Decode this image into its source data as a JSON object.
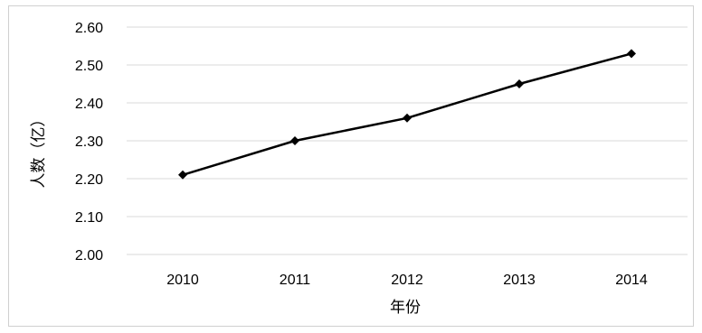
{
  "chart_data": {
    "type": "line",
    "title": "",
    "xlabel": "年份",
    "ylabel": "人数（亿）",
    "categories": [
      "2010",
      "2011",
      "2012",
      "2013",
      "2014"
    ],
    "series": [
      {
        "values": [
          2.21,
          2.3,
          2.36,
          2.45,
          2.53
        ]
      }
    ],
    "ylim": [
      2.0,
      2.6
    ],
    "yticks": [
      "2.00",
      "2.10",
      "2.20",
      "2.30",
      "2.40",
      "2.50",
      "2.60"
    ],
    "grid": true,
    "legend": "none",
    "marker": "diamond",
    "colors": {
      "line": "#000000",
      "grid": "#d9d9d9",
      "frame": "#d0d0d0"
    }
  }
}
